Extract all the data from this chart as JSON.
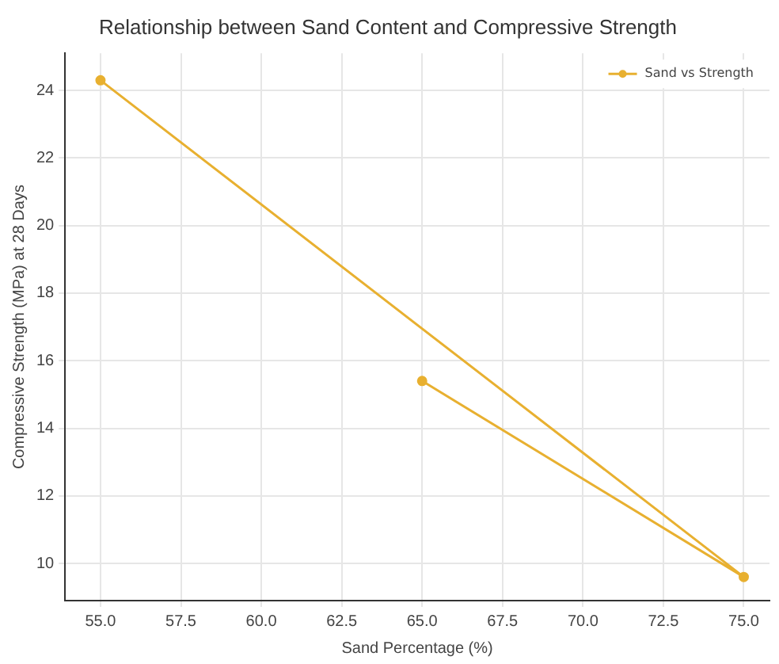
{
  "chart_data": {
    "type": "line",
    "title": "Relationship between Sand Content and Compressive Strength",
    "xlabel": "Sand Percentage (%)",
    "ylabel": "Compressive Strength (MPa) at 28 Days",
    "x": [
      65,
      75,
      55
    ],
    "series": [
      {
        "name": "Sand vs Strength",
        "color": "#e8b030",
        "values": [
          15.4,
          9.6,
          24.3
        ]
      }
    ],
    "xlim": [
      53.9,
      75.8
    ],
    "xticks": [
      {
        "value": 55,
        "label": "55.0"
      },
      {
        "value": 57.5,
        "label": "57.5"
      },
      {
        "value": 60,
        "label": "60.0"
      },
      {
        "value": 62.5,
        "label": "62.5"
      },
      {
        "value": 65,
        "label": "65.0"
      },
      {
        "value": 67.5,
        "label": "67.5"
      },
      {
        "value": 70,
        "label": "70.0"
      },
      {
        "value": 72.5,
        "label": "72.5"
      },
      {
        "value": 75,
        "label": "75.0"
      }
    ],
    "ylim": [
      8.9,
      25.1
    ],
    "yticks": [
      10,
      12,
      14,
      16,
      18,
      20,
      22,
      24
    ],
    "grid": true,
    "legend": "top right",
    "marker": "circle",
    "line_style": "solid"
  }
}
